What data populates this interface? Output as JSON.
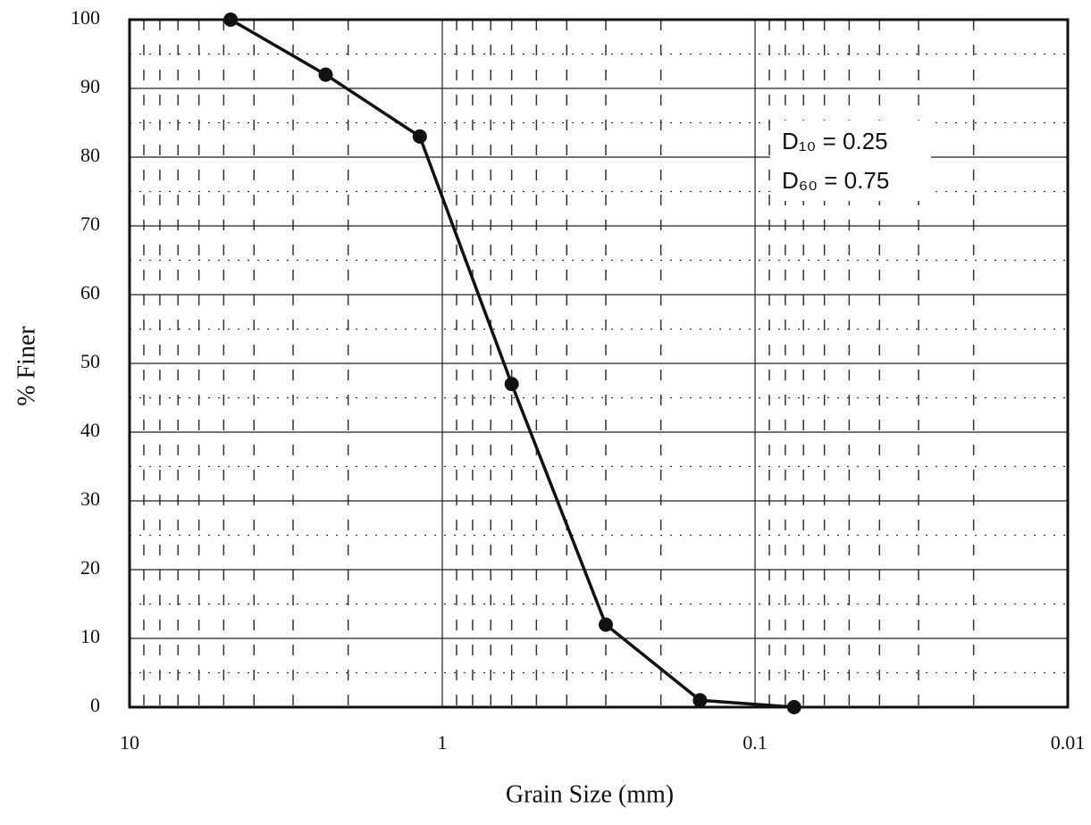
{
  "chart_data": {
    "type": "line",
    "x_label": "Grain Size (mm)",
    "y_label": "% Finer",
    "x": [
      4.75,
      2.36,
      1.18,
      0.6,
      0.3,
      0.15,
      0.075
    ],
    "series": [
      {
        "color": "#111111",
        "values": [
          100,
          92,
          83,
          47,
          12,
          1,
          0
        ]
      }
    ],
    "xlim": [
      10,
      0.01
    ],
    "xticks": [
      10,
      1,
      0.1,
      0.01
    ],
    "xscale": "log",
    "xticks_minor": [
      9,
      8,
      7,
      6,
      5,
      4,
      3,
      2,
      0.9,
      0.8,
      0.7,
      0.6,
      0.5,
      0.4,
      0.3,
      0.2,
      0.09,
      0.08,
      0.07,
      0.06,
      0.05,
      0.04,
      0.03,
      0.02
    ],
    "ylim": [
      0,
      100
    ],
    "yticks": [
      0,
      10,
      20,
      30,
      40,
      50,
      60,
      70,
      80,
      90,
      100
    ],
    "yticks_minor": [
      5,
      15,
      25,
      35,
      45,
      55,
      65,
      75,
      85,
      95
    ],
    "grid": true,
    "annotations": [
      "D₁₀ = 0.25",
      "D₆₀ = 0.75"
    ]
  }
}
